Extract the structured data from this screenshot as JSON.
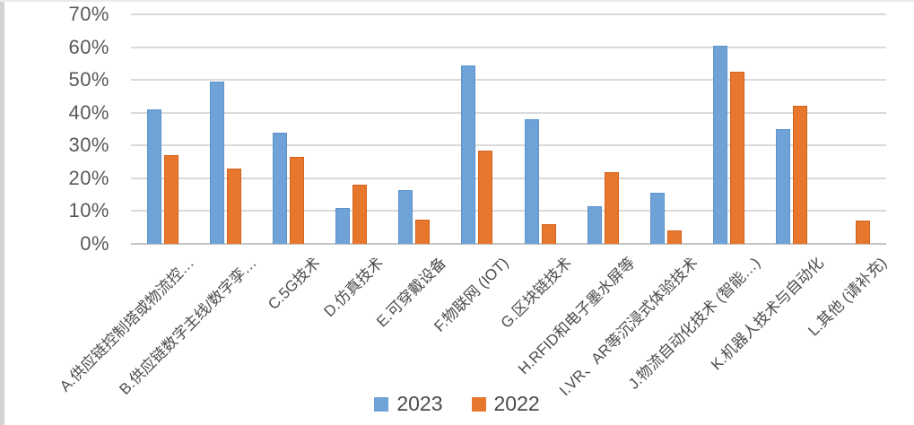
{
  "chart_data": {
    "type": "bar",
    "title": "",
    "categories": [
      "A.供应链控制塔或物流控…",
      "B.供应链数字主线/数字孪…",
      "C.5G技术",
      "D.仿真技术",
      "E.可穿戴设备",
      "F.物联网 (IOT)",
      "G.区块链技术",
      "H.RFID和电子墨水屏等",
      "I.VR、AR等沉浸式体验技术",
      "J.物流自动化技术 (智能…)",
      "K.机器人技术与自动化",
      "L.其他 (请补充)"
    ],
    "series": [
      {
        "name": "2023",
        "color": "#6fa3d8",
        "border_color": "#5b93cb",
        "values": [
          41,
          49.5,
          34,
          11,
          16.5,
          54.5,
          38,
          11.5,
          15.5,
          60.5,
          35,
          0
        ]
      },
      {
        "name": "2022",
        "color": "#e8772e",
        "border_color": "#d3631c",
        "values": [
          27,
          23,
          26.5,
          18,
          7.5,
          28.5,
          6,
          22,
          4,
          52.5,
          42,
          7
        ]
      }
    ],
    "y_ticks_top_to_bottom": [
      "70%",
      "60%",
      "50%",
      "40%",
      "30%",
      "20%",
      "10%",
      "0%"
    ],
    "ylim": [
      0,
      70
    ],
    "y_unit": "%",
    "grid": true,
    "legend_position": "bottom"
  }
}
